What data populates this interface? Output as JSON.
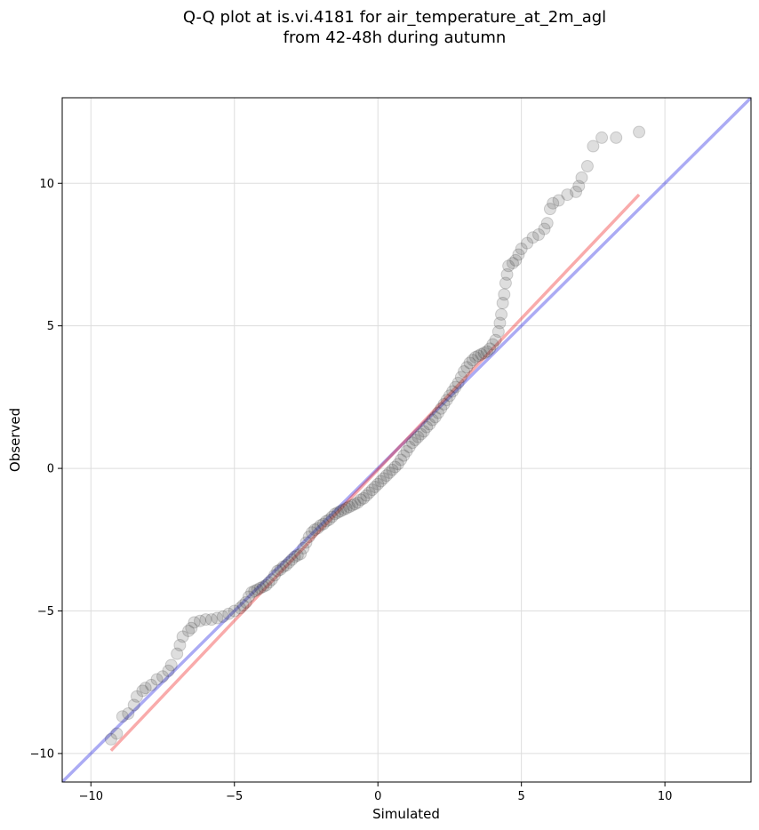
{
  "chart_data": {
    "type": "scatter",
    "title_lines": [
      "Q-Q plot at is.vi.4181 for air_temperature_at_2m_agl",
      "from 42-48h during autumn"
    ],
    "xlabel": "Simulated",
    "ylabel": "Observed",
    "xlim": [
      -11.0,
      13.0
    ],
    "ylim": [
      -11.0,
      13.0
    ],
    "xticks": [
      {
        "value": -10,
        "label": "−10"
      },
      {
        "value": -5,
        "label": "−5"
      },
      {
        "value": 0,
        "label": "0"
      },
      {
        "value": 5,
        "label": "5"
      },
      {
        "value": 10,
        "label": "10"
      }
    ],
    "yticks": [
      {
        "value": -10,
        "label": "−10"
      },
      {
        "value": -5,
        "label": "−5"
      },
      {
        "value": 0,
        "label": "0"
      },
      {
        "value": 5,
        "label": "5"
      },
      {
        "value": 10,
        "label": "10"
      }
    ],
    "grid": true,
    "colors": {
      "points": "#333333",
      "identity_line": "#0000dd",
      "fit_line": "#ee0000",
      "grid": "#dddddd"
    },
    "identity_line": {
      "x": [
        -11.0,
        13.0
      ],
      "y": [
        -11.0,
        13.0
      ]
    },
    "fit_line": {
      "x": [
        -9.3,
        9.1
      ],
      "y": [
        -9.9,
        9.6
      ]
    },
    "points": [
      [
        -9.3,
        -9.5
      ],
      [
        -9.1,
        -9.3
      ],
      [
        -8.9,
        -8.7
      ],
      [
        -8.7,
        -8.6
      ],
      [
        -8.5,
        -8.3
      ],
      [
        -8.4,
        -8.0
      ],
      [
        -8.2,
        -7.8
      ],
      [
        -8.1,
        -7.7
      ],
      [
        -7.9,
        -7.6
      ],
      [
        -7.7,
        -7.4
      ],
      [
        -7.5,
        -7.3
      ],
      [
        -7.3,
        -7.1
      ],
      [
        -7.2,
        -6.9
      ],
      [
        -7.0,
        -6.5
      ],
      [
        -6.9,
        -6.2
      ],
      [
        -6.8,
        -5.9
      ],
      [
        -6.6,
        -5.7
      ],
      [
        -6.5,
        -5.6
      ],
      [
        -6.4,
        -5.4
      ],
      [
        -6.2,
        -5.35
      ],
      [
        -6.0,
        -5.3
      ],
      [
        -5.8,
        -5.3
      ],
      [
        -5.6,
        -5.25
      ],
      [
        -5.4,
        -5.2
      ],
      [
        -5.2,
        -5.1
      ],
      [
        -5.0,
        -5.0
      ],
      [
        -4.8,
        -4.9
      ],
      [
        -4.7,
        -4.8
      ],
      [
        -4.6,
        -4.7
      ],
      [
        -4.5,
        -4.5
      ],
      [
        -4.4,
        -4.35
      ],
      [
        -4.3,
        -4.3
      ],
      [
        -4.2,
        -4.25
      ],
      [
        -4.1,
        -4.2
      ],
      [
        -4.0,
        -4.15
      ],
      [
        -3.9,
        -4.1
      ],
      [
        -3.8,
        -4.0
      ],
      [
        -3.7,
        -3.9
      ],
      [
        -3.6,
        -3.75
      ],
      [
        -3.5,
        -3.6
      ],
      [
        -3.4,
        -3.55
      ],
      [
        -3.3,
        -3.45
      ],
      [
        -3.2,
        -3.4
      ],
      [
        -3.1,
        -3.3
      ],
      [
        -3.0,
        -3.2
      ],
      [
        -2.9,
        -3.1
      ],
      [
        -2.8,
        -3.05
      ],
      [
        -2.7,
        -3.0
      ],
      [
        -2.6,
        -2.8
      ],
      [
        -2.5,
        -2.6
      ],
      [
        -2.4,
        -2.4
      ],
      [
        -2.3,
        -2.25
      ],
      [
        -2.2,
        -2.15
      ],
      [
        -2.1,
        -2.1
      ],
      [
        -2.0,
        -2.0
      ],
      [
        -1.9,
        -1.95
      ],
      [
        -1.8,
        -1.85
      ],
      [
        -1.7,
        -1.8
      ],
      [
        -1.6,
        -1.7
      ],
      [
        -1.5,
        -1.6
      ],
      [
        -1.4,
        -1.55
      ],
      [
        -1.3,
        -1.5
      ],
      [
        -1.2,
        -1.45
      ],
      [
        -1.1,
        -1.4
      ],
      [
        -1.0,
        -1.35
      ],
      [
        -0.9,
        -1.3
      ],
      [
        -0.8,
        -1.25
      ],
      [
        -0.7,
        -1.2
      ],
      [
        -0.6,
        -1.1
      ],
      [
        -0.5,
        -1.05
      ],
      [
        -0.4,
        -0.95
      ],
      [
        -0.3,
        -0.85
      ],
      [
        -0.2,
        -0.75
      ],
      [
        -0.1,
        -0.65
      ],
      [
        0.0,
        -0.55
      ],
      [
        0.1,
        -0.45
      ],
      [
        0.2,
        -0.35
      ],
      [
        0.3,
        -0.25
      ],
      [
        0.4,
        -0.15
      ],
      [
        0.5,
        -0.05
      ],
      [
        0.6,
        0.05
      ],
      [
        0.7,
        0.15
      ],
      [
        0.8,
        0.3
      ],
      [
        0.9,
        0.45
      ],
      [
        1.0,
        0.6
      ],
      [
        1.1,
        0.75
      ],
      [
        1.2,
        0.9
      ],
      [
        1.3,
        1.0
      ],
      [
        1.4,
        1.1
      ],
      [
        1.5,
        1.2
      ],
      [
        1.6,
        1.3
      ],
      [
        1.7,
        1.45
      ],
      [
        1.8,
        1.55
      ],
      [
        1.9,
        1.7
      ],
      [
        2.0,
        1.8
      ],
      [
        2.1,
        1.95
      ],
      [
        2.2,
        2.1
      ],
      [
        2.3,
        2.25
      ],
      [
        2.4,
        2.4
      ],
      [
        2.5,
        2.55
      ],
      [
        2.6,
        2.7
      ],
      [
        2.7,
        2.85
      ],
      [
        2.8,
        3.0
      ],
      [
        2.9,
        3.2
      ],
      [
        3.0,
        3.4
      ],
      [
        3.1,
        3.55
      ],
      [
        3.2,
        3.7
      ],
      [
        3.3,
        3.8
      ],
      [
        3.4,
        3.9
      ],
      [
        3.5,
        3.95
      ],
      [
        3.6,
        4.0
      ],
      [
        3.7,
        4.05
      ],
      [
        3.8,
        4.1
      ],
      [
        3.9,
        4.2
      ],
      [
        4.0,
        4.35
      ],
      [
        4.1,
        4.5
      ],
      [
        4.2,
        4.8
      ],
      [
        4.25,
        5.1
      ],
      [
        4.3,
        5.4
      ],
      [
        4.35,
        5.8
      ],
      [
        4.4,
        6.1
      ],
      [
        4.45,
        6.5
      ],
      [
        4.5,
        6.8
      ],
      [
        4.55,
        7.1
      ],
      [
        4.7,
        7.2
      ],
      [
        4.8,
        7.3
      ],
      [
        4.9,
        7.5
      ],
      [
        5.0,
        7.7
      ],
      [
        5.2,
        7.9
      ],
      [
        5.4,
        8.1
      ],
      [
        5.6,
        8.2
      ],
      [
        5.8,
        8.4
      ],
      [
        5.9,
        8.6
      ],
      [
        6.0,
        9.1
      ],
      [
        6.1,
        9.3
      ],
      [
        6.3,
        9.4
      ],
      [
        6.6,
        9.6
      ],
      [
        6.9,
        9.7
      ],
      [
        7.0,
        9.9
      ],
      [
        7.1,
        10.2
      ],
      [
        7.3,
        10.6
      ],
      [
        7.5,
        11.3
      ],
      [
        7.8,
        11.6
      ],
      [
        8.3,
        11.6
      ],
      [
        9.1,
        11.8
      ]
    ]
  }
}
